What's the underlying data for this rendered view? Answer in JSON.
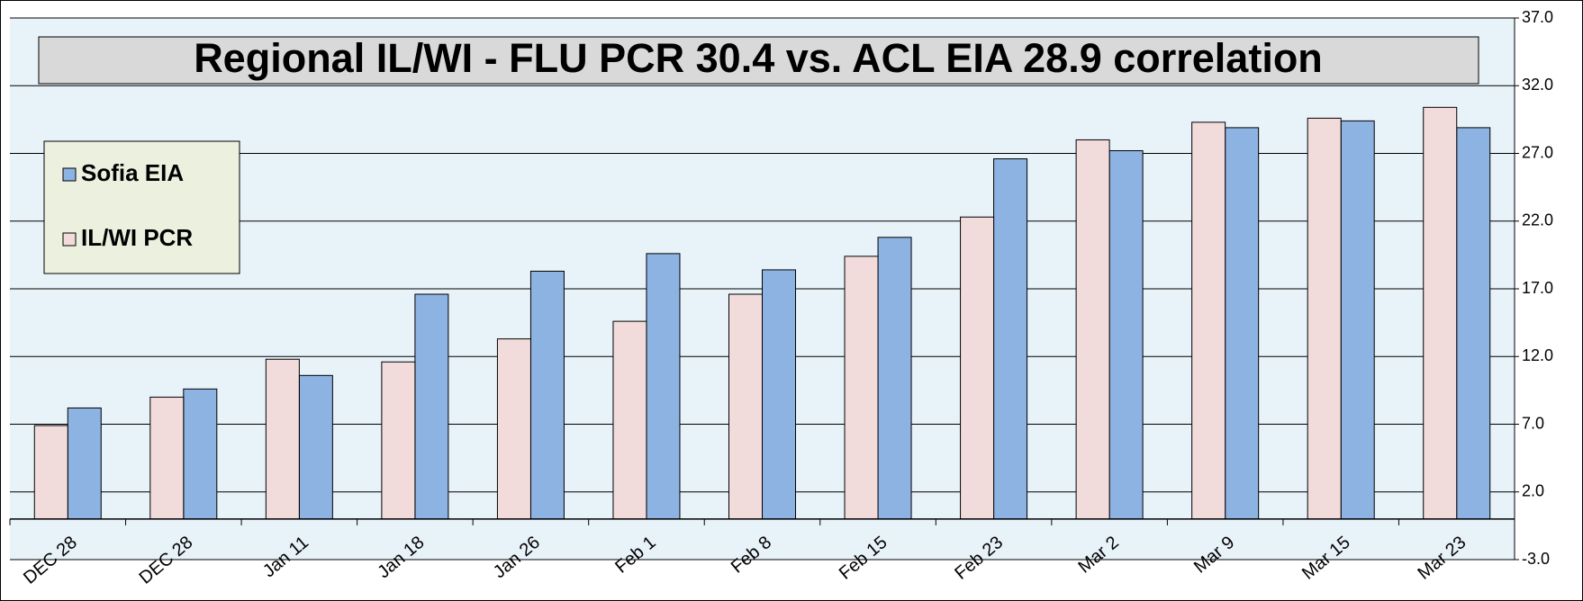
{
  "chart_data": {
    "type": "bar",
    "title": "Regional IL/WI -  FLU PCR 30.4 vs. ACL EIA 28.9 correlation",
    "categories": [
      "DEC 28",
      "DEC 28",
      "Jan 11",
      "Jan 18",
      "Jan 26",
      "Feb 1",
      "Feb 8",
      "Feb 15",
      "Feb 23",
      "Mar 2",
      "Mar 9",
      "Mar 15",
      "Mar 23"
    ],
    "series": [
      {
        "name": "Sofia EIA",
        "color": "#8db3e2",
        "values": [
          8.2,
          9.6,
          10.6,
          16.6,
          18.3,
          19.6,
          18.4,
          20.8,
          26.6,
          27.2,
          28.9,
          29.4,
          28.9
        ]
      },
      {
        "name": "IL/WI PCR",
        "color": "#f2dcdb",
        "values": [
          6.9,
          9.0,
          11.8,
          11.6,
          13.3,
          14.6,
          16.6,
          19.4,
          22.3,
          28.0,
          29.3,
          29.6,
          30.4
        ]
      }
    ],
    "ylim": [
      -3,
      37
    ],
    "yticks": [
      {
        "value": -3,
        "label": "-3.0"
      },
      {
        "value": 2,
        "label": "2.0"
      },
      {
        "value": 7,
        "label": "7.0"
      },
      {
        "value": 12,
        "label": "12.0"
      },
      {
        "value": 17,
        "label": "17.0"
      },
      {
        "value": 22,
        "label": "22.0"
      },
      {
        "value": 27,
        "label": "27.0"
      },
      {
        "value": 32,
        "label": "32.0"
      },
      {
        "value": 37,
        "label": "37.0"
      }
    ],
    "grid": true
  }
}
